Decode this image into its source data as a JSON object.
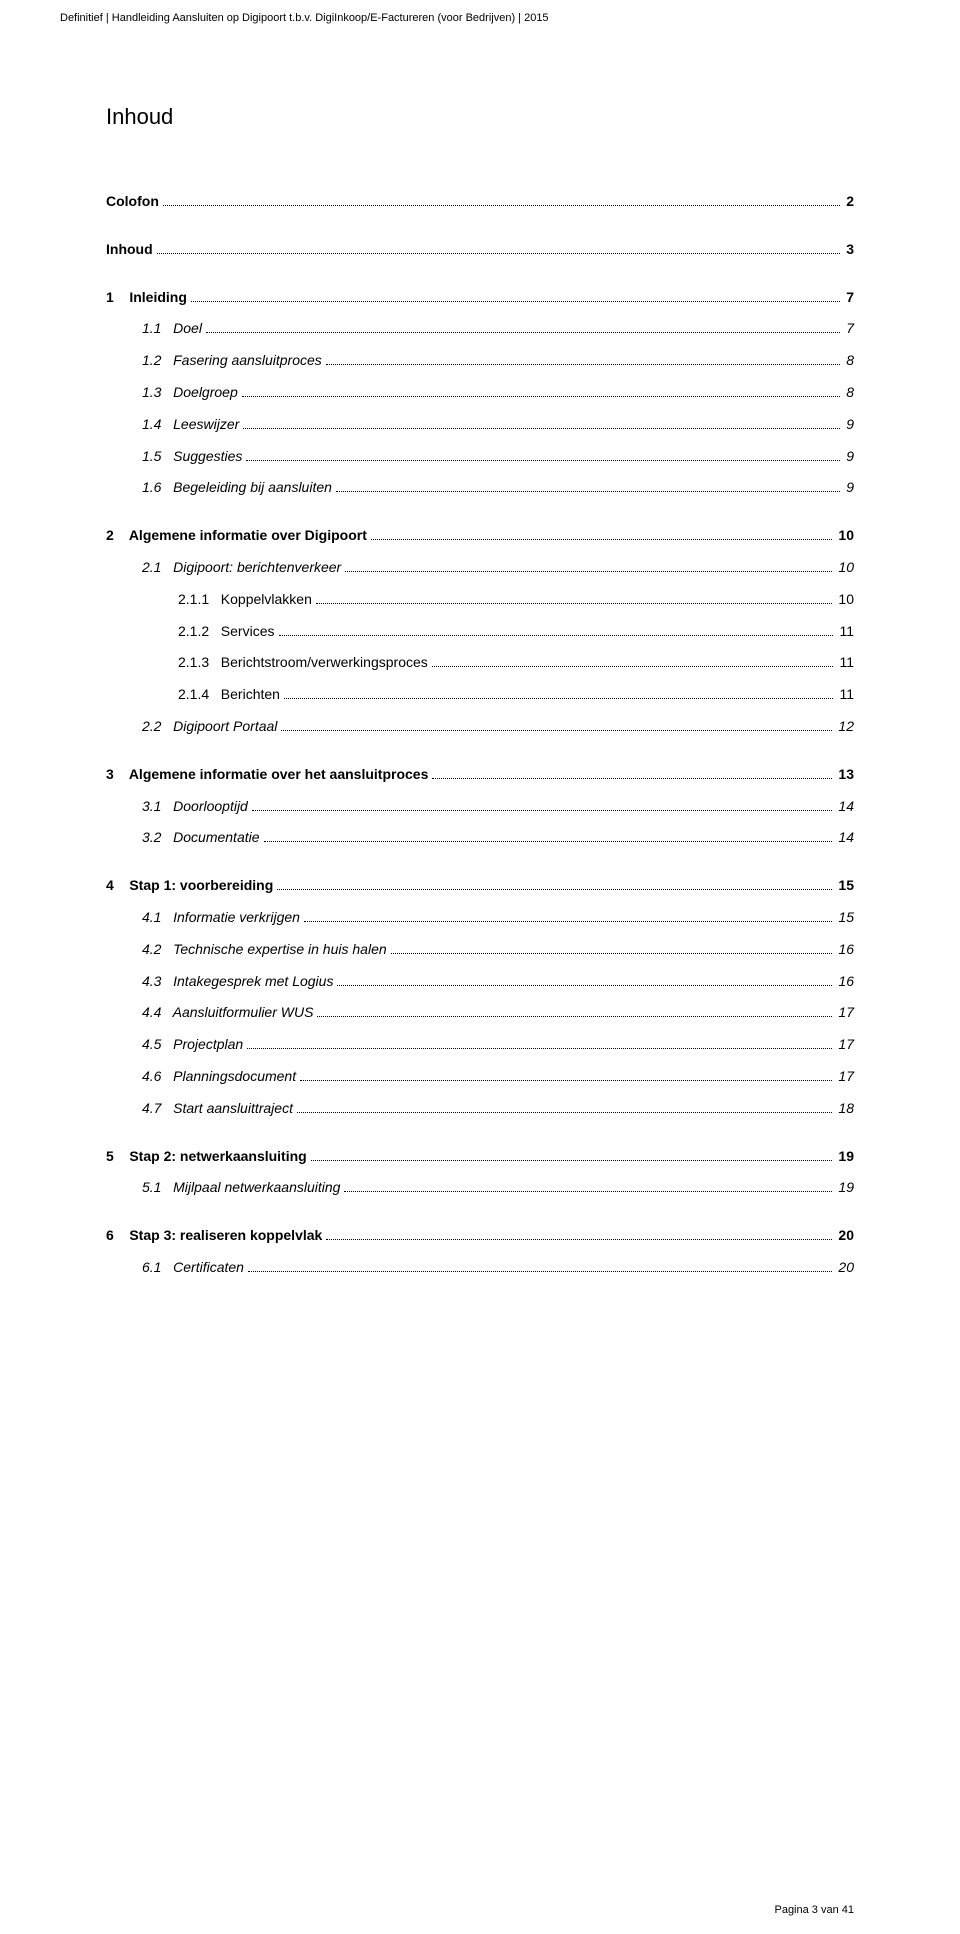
{
  "header": "Definitief | Handleiding Aansluiten op Digipoort t.b.v. DigiInkoop/E-Factureren (voor Bedrijven) | 2015",
  "title": "Inhoud",
  "footer": "Pagina 3 van 41",
  "toc": [
    {
      "label": "Colofon",
      "page": "2",
      "bold": true,
      "indent": 0
    },
    {
      "spacer": true
    },
    {
      "label": "Inhoud",
      "page": "3",
      "bold": true,
      "indent": 0
    },
    {
      "spacer": true
    },
    {
      "label": "1    Inleiding",
      "page": "7",
      "bold": true,
      "indent": 0
    },
    {
      "label": "1.1   Doel",
      "page": "7",
      "italic": true,
      "indent": 1
    },
    {
      "label": "1.2   Fasering aansluitproces",
      "page": "8",
      "italic": true,
      "indent": 1
    },
    {
      "label": "1.3   Doelgroep",
      "page": "8",
      "italic": true,
      "indent": 1
    },
    {
      "label": "1.4   Leeswijzer",
      "page": "9",
      "italic": true,
      "indent": 1
    },
    {
      "label": "1.5   Suggesties",
      "page": "9",
      "italic": true,
      "indent": 1
    },
    {
      "label": "1.6   Begeleiding bij aansluiten",
      "page": "9",
      "italic": true,
      "indent": 1
    },
    {
      "spacer": true
    },
    {
      "label": "2    Algemene informatie over Digipoort",
      "page": "10",
      "bold": true,
      "indent": 0
    },
    {
      "label": "2.1   Digipoort: berichtenverkeer",
      "page": "10",
      "italic": true,
      "indent": 1
    },
    {
      "label": "2.1.1   Koppelvlakken",
      "page": "10",
      "indent": 2
    },
    {
      "label": "2.1.2   Services",
      "page": "11",
      "indent": 2
    },
    {
      "label": "2.1.3   Berichtstroom/verwerkingsproces",
      "page": "11",
      "indent": 2
    },
    {
      "label": "2.1.4   Berichten",
      "page": "11",
      "indent": 2
    },
    {
      "label": "2.2   Digipoort Portaal",
      "page": "12",
      "italic": true,
      "indent": 1
    },
    {
      "spacer": true
    },
    {
      "label": "3    Algemene informatie over het aansluitproces",
      "page": "13",
      "bold": true,
      "indent": 0
    },
    {
      "label": "3.1   Doorlooptijd",
      "page": "14",
      "italic": true,
      "indent": 1
    },
    {
      "label": "3.2   Documentatie",
      "page": "14",
      "italic": true,
      "indent": 1
    },
    {
      "spacer": true
    },
    {
      "label": "4    Stap 1: voorbereiding",
      "page": "15",
      "bold": true,
      "indent": 0
    },
    {
      "label": "4.1   Informatie verkrijgen",
      "page": "15",
      "italic": true,
      "indent": 1
    },
    {
      "label": "4.2   Technische expertise in huis halen",
      "page": "16",
      "italic": true,
      "indent": 1
    },
    {
      "label": "4.3   Intakegesprek met Logius",
      "page": "16",
      "italic": true,
      "indent": 1
    },
    {
      "label": "4.4   Aansluitformulier WUS",
      "page": "17",
      "italic": true,
      "indent": 1
    },
    {
      "label": "4.5   Projectplan",
      "page": "17",
      "italic": true,
      "indent": 1
    },
    {
      "label": "4.6   Planningsdocument",
      "page": "17",
      "italic": true,
      "indent": 1
    },
    {
      "label": "4.7   Start aansluittraject",
      "page": "18",
      "italic": true,
      "indent": 1
    },
    {
      "spacer": true
    },
    {
      "label": "5    Stap 2: netwerkaansluiting",
      "page": "19",
      "bold": true,
      "indent": 0
    },
    {
      "label": "5.1   Mijlpaal netwerkaansluiting",
      "page": "19",
      "italic": true,
      "indent": 1
    },
    {
      "spacer": true
    },
    {
      "label": "6    Stap 3: realiseren koppelvlak",
      "page": "20",
      "bold": true,
      "indent": 0
    },
    {
      "label": "6.1   Certificaten",
      "page": "20",
      "italic": true,
      "indent": 1
    }
  ]
}
